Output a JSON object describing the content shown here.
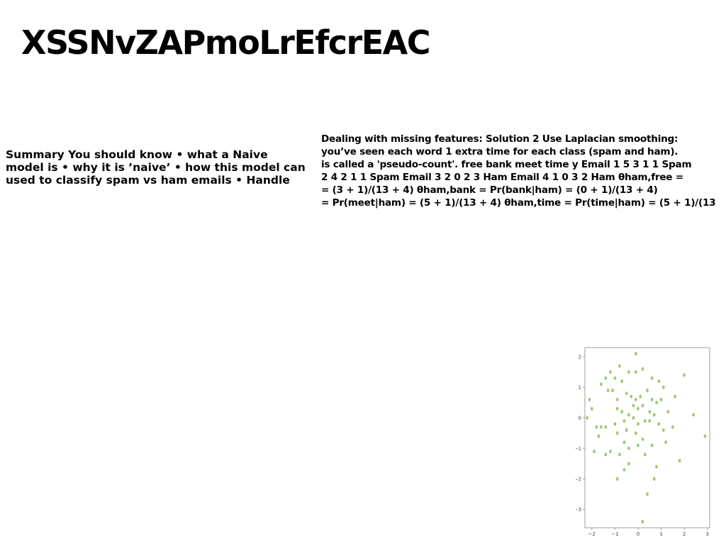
{
  "page": {
    "title": "XSSNvZAPmoLrEfcrEAC"
  },
  "summary_block": {
    "lines": [
      "Summary You should know • what a Naive",
      "model is • why it is ’naive’ • how this model can",
      "used to classify spam vs ham emails • Handle"
    ]
  },
  "missing_features_block": {
    "lines": [
      "Dealing with missing features: Solution 2 Use Laplacian smoothing:",
      "you’ve seen each word 1 extra time for each class (spam and ham).",
      "is called a 'pseudo-count'. free bank meet time y Email 1 5 3 1 1 Spam",
      "2 4 2 1 1 Spam Email 3 2 0 2 3 Ham Email 4 1 0 3 2 Ham θham,free =",
      "= (3 + 1)/(13 + 4) θham,bank = Pr(bank|ham) = (0 + 1)/(13 + 4)",
      "= Pr(meet|ham) = (5 + 1)/(13 + 4) θham,time = Pr(time|ham) = (5 + 1)/(13"
    ]
  },
  "chart_data": {
    "type": "scatter",
    "title": "",
    "xlabel": "",
    "ylabel": "",
    "xlim": [
      -2.3,
      3.1
    ],
    "ylim": [
      -3.6,
      2.3
    ],
    "xticks": [
      "−2",
      "−1",
      "0",
      "1",
      "2",
      "3"
    ],
    "yticks": [
      "2",
      "1",
      "0",
      "−1",
      "−2",
      "−3"
    ],
    "grid": false,
    "legend": "none",
    "point_color": "#7cb342",
    "points": [
      [
        -0.1,
        2.1
      ],
      [
        0.2,
        1.6
      ],
      [
        -0.4,
        1.5
      ],
      [
        -0.8,
        1.7
      ],
      [
        -1.2,
        1.5
      ],
      [
        -1.4,
        1.3
      ],
      [
        -1.6,
        1.1
      ],
      [
        -1.0,
        1.3
      ],
      [
        -0.7,
        1.2
      ],
      [
        -0.1,
        1.5
      ],
      [
        0.6,
        1.3
      ],
      [
        0.9,
        1.2
      ],
      [
        1.1,
        1.0
      ],
      [
        2.0,
        1.4
      ],
      [
        -2.1,
        0.6
      ],
      [
        -2.0,
        0.3
      ],
      [
        -2.2,
        0.0
      ],
      [
        -1.3,
        0.9
      ],
      [
        -1.1,
        0.9
      ],
      [
        -0.9,
        0.6
      ],
      [
        -0.5,
        0.8
      ],
      [
        -0.3,
        0.7
      ],
      [
        -0.1,
        0.6
      ],
      [
        0.1,
        0.7
      ],
      [
        0.4,
        0.9
      ],
      [
        0.6,
        0.6
      ],
      [
        0.8,
        0.5
      ],
      [
        1.0,
        0.6
      ],
      [
        1.6,
        0.7
      ],
      [
        -0.9,
        0.3
      ],
      [
        -0.7,
        0.2
      ],
      [
        -0.4,
        0.1
      ],
      [
        -0.2,
        0.4
      ],
      [
        0.0,
        0.3
      ],
      [
        0.2,
        0.4
      ],
      [
        0.5,
        0.2
      ],
      [
        0.7,
        0.1
      ],
      [
        1.3,
        0.2
      ],
      [
        2.4,
        0.1
      ],
      [
        -1.8,
        -0.3
      ],
      [
        -1.6,
        -0.3
      ],
      [
        -1.4,
        -0.3
      ],
      [
        -1.0,
        -0.2
      ],
      [
        -0.6,
        -0.1
      ],
      [
        -0.2,
        0.0
      ],
      [
        0.0,
        -0.2
      ],
      [
        0.3,
        -0.1
      ],
      [
        0.5,
        -0.1
      ],
      [
        0.9,
        -0.2
      ],
      [
        1.1,
        -0.4
      ],
      [
        1.5,
        -0.3
      ],
      [
        -1.7,
        -0.6
      ],
      [
        -0.9,
        -0.5
      ],
      [
        -0.5,
        -0.4
      ],
      [
        -0.1,
        -0.5
      ],
      [
        0.2,
        -0.7
      ],
      [
        0.6,
        -0.9
      ],
      [
        1.2,
        -0.8
      ],
      [
        2.9,
        -0.6
      ],
      [
        -0.6,
        -0.8
      ],
      [
        -0.4,
        -1.0
      ],
      [
        -0.8,
        -1.2
      ],
      [
        0.0,
        -0.9
      ],
      [
        -1.2,
        -1.1
      ],
      [
        -1.9,
        -1.1
      ],
      [
        -1.4,
        -1.2
      ],
      [
        -0.4,
        -1.5
      ],
      [
        0.3,
        -1.2
      ],
      [
        0.8,
        -1.6
      ],
      [
        1.8,
        -1.4
      ],
      [
        -0.6,
        -1.7
      ],
      [
        -0.9,
        -2.0
      ],
      [
        0.7,
        -2.0
      ],
      [
        0.4,
        -2.5
      ],
      [
        0.2,
        -3.4
      ]
    ]
  }
}
